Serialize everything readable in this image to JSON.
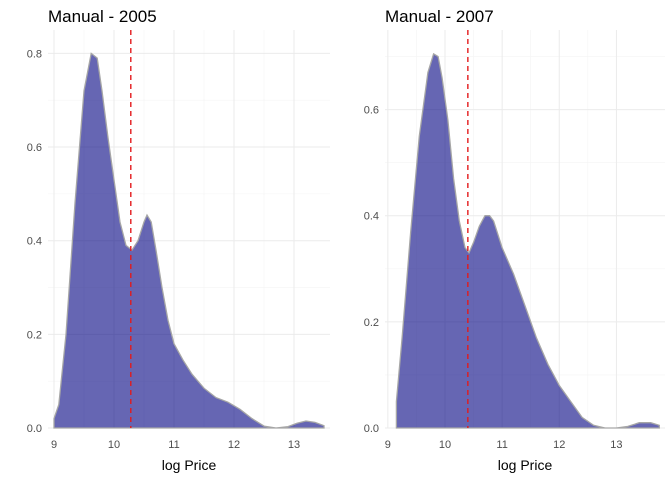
{
  "colors": {
    "fill": "#000080",
    "mean_line": "#e31a1c"
  },
  "chart_data": [
    {
      "type": "area",
      "title": "Manual - 2005",
      "xlabel": "log Price",
      "ylabel": "",
      "xlim": [
        8.9,
        13.6
      ],
      "ylim": [
        0,
        0.85
      ],
      "x_ticks": [
        9,
        10,
        11,
        12,
        13
      ],
      "y_ticks": [
        0.0,
        0.2,
        0.4,
        0.6,
        0.8
      ],
      "y_tick_labels": [
        "0.0",
        "0.2",
        "0.4",
        "0.6",
        "0.8"
      ],
      "grid": true,
      "mean_line": 10.28,
      "x": [
        9.0,
        9.08,
        9.2,
        9.35,
        9.5,
        9.62,
        9.72,
        9.8,
        9.9,
        10.0,
        10.1,
        10.2,
        10.3,
        10.4,
        10.5,
        10.55,
        10.62,
        10.7,
        10.8,
        10.9,
        11.0,
        11.15,
        11.3,
        11.5,
        11.7,
        11.9,
        12.1,
        12.3,
        12.5,
        12.7,
        12.9,
        13.05,
        13.2,
        13.35,
        13.5
      ],
      "y": [
        0.02,
        0.05,
        0.2,
        0.48,
        0.72,
        0.8,
        0.79,
        0.72,
        0.62,
        0.53,
        0.44,
        0.39,
        0.38,
        0.4,
        0.44,
        0.455,
        0.44,
        0.38,
        0.3,
        0.23,
        0.18,
        0.145,
        0.115,
        0.085,
        0.065,
        0.055,
        0.04,
        0.02,
        0.004,
        0.0,
        0.003,
        0.01,
        0.015,
        0.012,
        0.005
      ]
    },
    {
      "type": "area",
      "title": "Manual - 2007",
      "xlabel": "log Price",
      "ylabel": "",
      "xlim": [
        8.95,
        13.85
      ],
      "ylim": [
        0,
        0.75
      ],
      "x_ticks": [
        9,
        10,
        11,
        12,
        13
      ],
      "y_ticks": [
        0.0,
        0.2,
        0.4,
        0.6
      ],
      "y_tick_labels": [
        "0.0",
        "0.2",
        "0.4",
        "0.6"
      ],
      "grid": true,
      "mean_line": 10.4,
      "x": [
        9.15,
        9.25,
        9.4,
        9.55,
        9.7,
        9.8,
        9.88,
        9.95,
        10.05,
        10.15,
        10.25,
        10.35,
        10.42,
        10.5,
        10.6,
        10.7,
        10.78,
        10.85,
        11.0,
        11.2,
        11.4,
        11.6,
        11.8,
        12.0,
        12.2,
        12.4,
        12.6,
        12.8,
        13.0,
        13.2,
        13.4,
        13.6,
        13.75
      ],
      "y": [
        0.05,
        0.17,
        0.37,
        0.55,
        0.67,
        0.705,
        0.7,
        0.66,
        0.58,
        0.47,
        0.39,
        0.34,
        0.33,
        0.35,
        0.38,
        0.4,
        0.4,
        0.39,
        0.34,
        0.29,
        0.23,
        0.17,
        0.12,
        0.08,
        0.05,
        0.02,
        0.005,
        0.0,
        0.0,
        0.003,
        0.01,
        0.01,
        0.005
      ]
    }
  ]
}
